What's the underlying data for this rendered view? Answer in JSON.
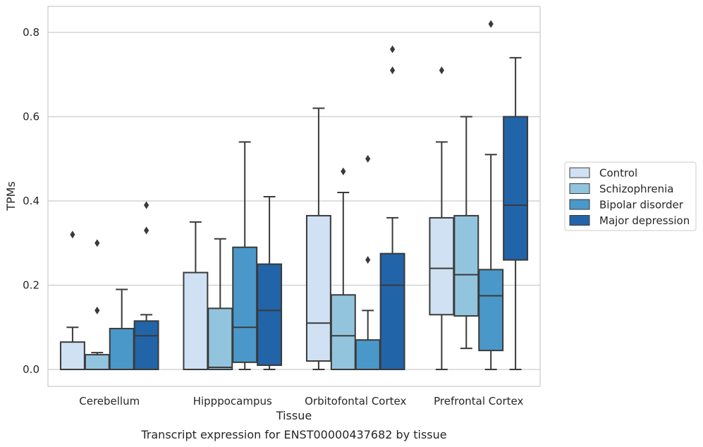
{
  "caption": "Transcript expression for ENST00000437682 by tissue",
  "chart_data": {
    "type": "box",
    "title": "",
    "xlabel": "Tissue",
    "ylabel": "TPMs",
    "ylim": [
      -0.04,
      0.86
    ],
    "yticks": [
      "0.0",
      "0.2",
      "0.4",
      "0.6",
      "0.8"
    ],
    "grid": "horizontal",
    "legend_position": "right",
    "categories": [
      "Cerebellum",
      "Hipppocampus",
      "Orbitofontal Cortex",
      "Prefrontal Cortex"
    ],
    "series": [
      {
        "name": "Control",
        "color": "#cfe1f2",
        "boxes": [
          {
            "whisker_low": 0.0,
            "q1": 0.0,
            "median": 0.0,
            "q3": 0.065,
            "whisker_high": 0.1,
            "outliers": [
              0.32
            ]
          },
          {
            "whisker_low": 0.0,
            "q1": 0.0,
            "median": 0.0,
            "q3": 0.23,
            "whisker_high": 0.35,
            "outliers": []
          },
          {
            "whisker_low": 0.0,
            "q1": 0.02,
            "median": 0.11,
            "q3": 0.365,
            "whisker_high": 0.62,
            "outliers": []
          },
          {
            "whisker_low": 0.0,
            "q1": 0.13,
            "median": 0.24,
            "q3": 0.36,
            "whisker_high": 0.54,
            "outliers": [
              0.71
            ]
          }
        ]
      },
      {
        "name": "Schizophrenia",
        "color": "#93c4de",
        "boxes": [
          {
            "whisker_low": 0.0,
            "q1": 0.0,
            "median": 0.0,
            "q3": 0.035,
            "whisker_high": 0.04,
            "outliers": [
              0.14,
              0.3
            ]
          },
          {
            "whisker_low": 0.0,
            "q1": 0.0,
            "median": 0.005,
            "q3": 0.145,
            "whisker_high": 0.31,
            "outliers": []
          },
          {
            "whisker_low": 0.0,
            "q1": 0.0,
            "median": 0.08,
            "q3": 0.177,
            "whisker_high": 0.42,
            "outliers": [
              0.47
            ]
          },
          {
            "whisker_low": 0.05,
            "q1": 0.127,
            "median": 0.225,
            "q3": 0.365,
            "whisker_high": 0.6,
            "outliers": []
          }
        ]
      },
      {
        "name": "Bipolar disorder",
        "color": "#4a98c9",
        "boxes": [
          {
            "whisker_low": 0.0,
            "q1": 0.0,
            "median": 0.0,
            "q3": 0.097,
            "whisker_high": 0.19,
            "outliers": []
          },
          {
            "whisker_low": 0.0,
            "q1": 0.017,
            "median": 0.1,
            "q3": 0.29,
            "whisker_high": 0.54,
            "outliers": []
          },
          {
            "whisker_low": 0.0,
            "q1": 0.0,
            "median": 0.0,
            "q3": 0.07,
            "whisker_high": 0.14,
            "outliers": [
              0.26,
              0.5
            ]
          },
          {
            "whisker_low": 0.0,
            "q1": 0.045,
            "median": 0.175,
            "q3": 0.237,
            "whisker_high": 0.51,
            "outliers": [
              0.82
            ]
          }
        ]
      },
      {
        "name": "Major depression",
        "color": "#2264a8",
        "boxes": [
          {
            "whisker_low": 0.0,
            "q1": 0.0,
            "median": 0.08,
            "q3": 0.115,
            "whisker_high": 0.13,
            "outliers": [
              0.33,
              0.39
            ]
          },
          {
            "whisker_low": 0.0,
            "q1": 0.01,
            "median": 0.14,
            "q3": 0.25,
            "whisker_high": 0.41,
            "outliers": []
          },
          {
            "whisker_low": 0.0,
            "q1": 0.0,
            "median": 0.2,
            "q3": 0.275,
            "whisker_high": 0.36,
            "outliers": [
              0.71,
              0.76
            ]
          },
          {
            "whisker_low": 0.0,
            "q1": 0.26,
            "median": 0.39,
            "q3": 0.6,
            "whisker_high": 0.74,
            "outliers": []
          }
        ]
      }
    ]
  }
}
